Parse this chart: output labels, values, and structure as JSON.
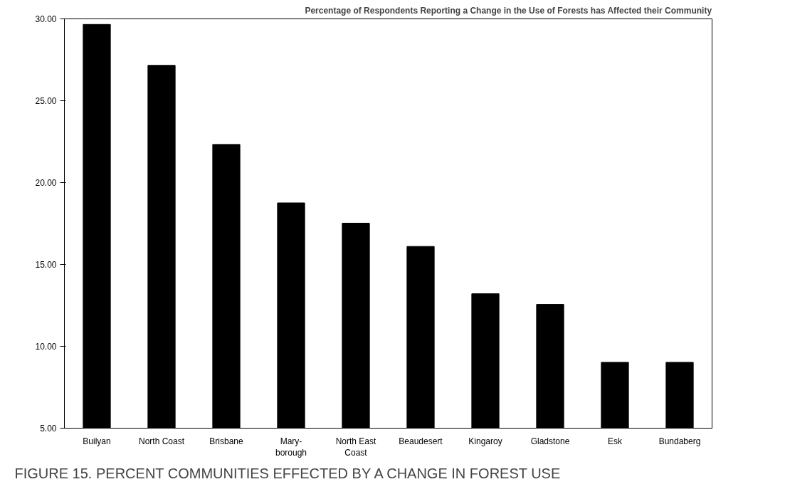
{
  "chart_data": {
    "type": "bar",
    "title": "Percentage of Respondents Reporting a Change in the Use of Forests has Affected their Community",
    "categories": [
      "Builyan",
      "North Coast",
      "Brisbane",
      "Mary-\nborough",
      "North East\nCoast",
      "Beaudesert",
      "Kingaroy",
      "Gladstone",
      "Esk",
      "Bundaberg"
    ],
    "values": [
      29.66,
      27.16,
      22.33,
      18.76,
      17.52,
      16.1,
      13.21,
      12.56,
      9.02,
      9.02
    ],
    "color": "#000000",
    "ylim": [
      5,
      30
    ],
    "yticks": [
      {
        "value": 5,
        "label": "5.00"
      },
      {
        "value": 10,
        "label": "10.00"
      },
      {
        "value": 15,
        "label": "15.00"
      },
      {
        "value": 20,
        "label": "20.00"
      },
      {
        "value": 25,
        "label": "25.00"
      },
      {
        "value": 30,
        "label": "30.00"
      }
    ],
    "grid": false,
    "annotations": [
      "FIGURE 15. PERCENT COMMUNITIES EFFECTED BY A CHANGE IN FOREST USE"
    ]
  }
}
